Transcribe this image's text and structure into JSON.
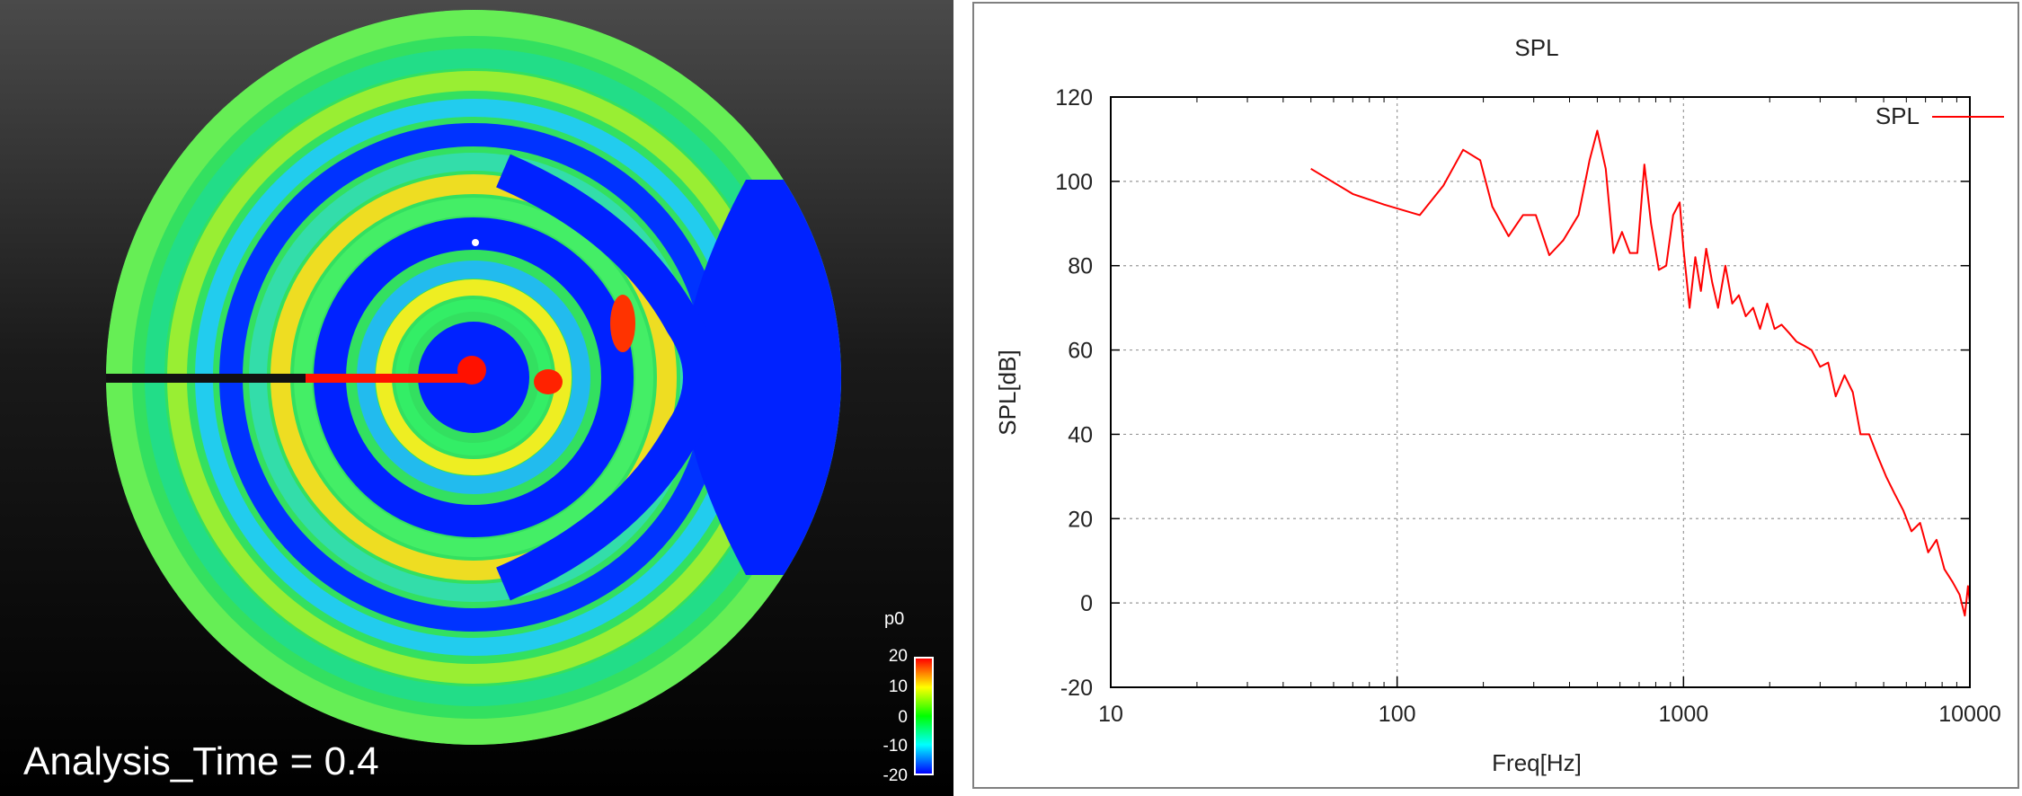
{
  "simulation": {
    "analysis_time_label": "Analysis_Time = 0.4",
    "colorbar": {
      "title": "p0",
      "ticks": [
        "20",
        "10",
        "0",
        "-10",
        "-20"
      ],
      "colors": [
        "#ff0000",
        "#ffff00",
        "#00ff00",
        "#00ffff",
        "#0000ff"
      ]
    }
  },
  "chart_data": {
    "type": "line",
    "title": "SPL",
    "xlabel": "Freq[Hz]",
    "ylabel": "SPL[dB]",
    "x_scale": "log",
    "xlim": [
      10,
      10000
    ],
    "ylim": [
      -20,
      120
    ],
    "x_ticks": [
      "10",
      "100",
      "1000",
      "10000"
    ],
    "y_ticks": [
      "-20",
      "0",
      "20",
      "40",
      "60",
      "80",
      "100",
      "120"
    ],
    "grid": true,
    "legend_position": "top-right",
    "series": [
      {
        "name": "SPL",
        "color": "#ff0000",
        "x": [
          50,
          70,
          90,
          120,
          145,
          170,
          195,
          215,
          245,
          275,
          305,
          340,
          380,
          430,
          470,
          500,
          535,
          570,
          610,
          650,
          690,
          730,
          770,
          820,
          870,
          920,
          970,
          1000,
          1050,
          1100,
          1150,
          1200,
          1260,
          1320,
          1400,
          1480,
          1560,
          1650,
          1750,
          1850,
          1960,
          2080,
          2200,
          2340,
          2480,
          2640,
          2800,
          3000,
          3200,
          3400,
          3650,
          3900,
          4150,
          4450,
          4750,
          5100,
          5450,
          5850,
          6250,
          6700,
          7150,
          7650,
          8150,
          8700,
          9200,
          9600,
          9850,
          10000
        ],
        "y": [
          103,
          97,
          94.5,
          92,
          99,
          107.5,
          105,
          94,
          87,
          92,
          92,
          82.5,
          86,
          92,
          105,
          112,
          103,
          83,
          88,
          83,
          83,
          104,
          90,
          79,
          80,
          92,
          95,
          84,
          70,
          82,
          74,
          84,
          76,
          70,
          80,
          71,
          73,
          68,
          70,
          65,
          71,
          65,
          66,
          64,
          62,
          61,
          60,
          56,
          57,
          49,
          54,
          50,
          40,
          40,
          35,
          30,
          26,
          22,
          17,
          19,
          12,
          15,
          8,
          5,
          2,
          -3,
          4,
          0
        ]
      }
    ]
  }
}
